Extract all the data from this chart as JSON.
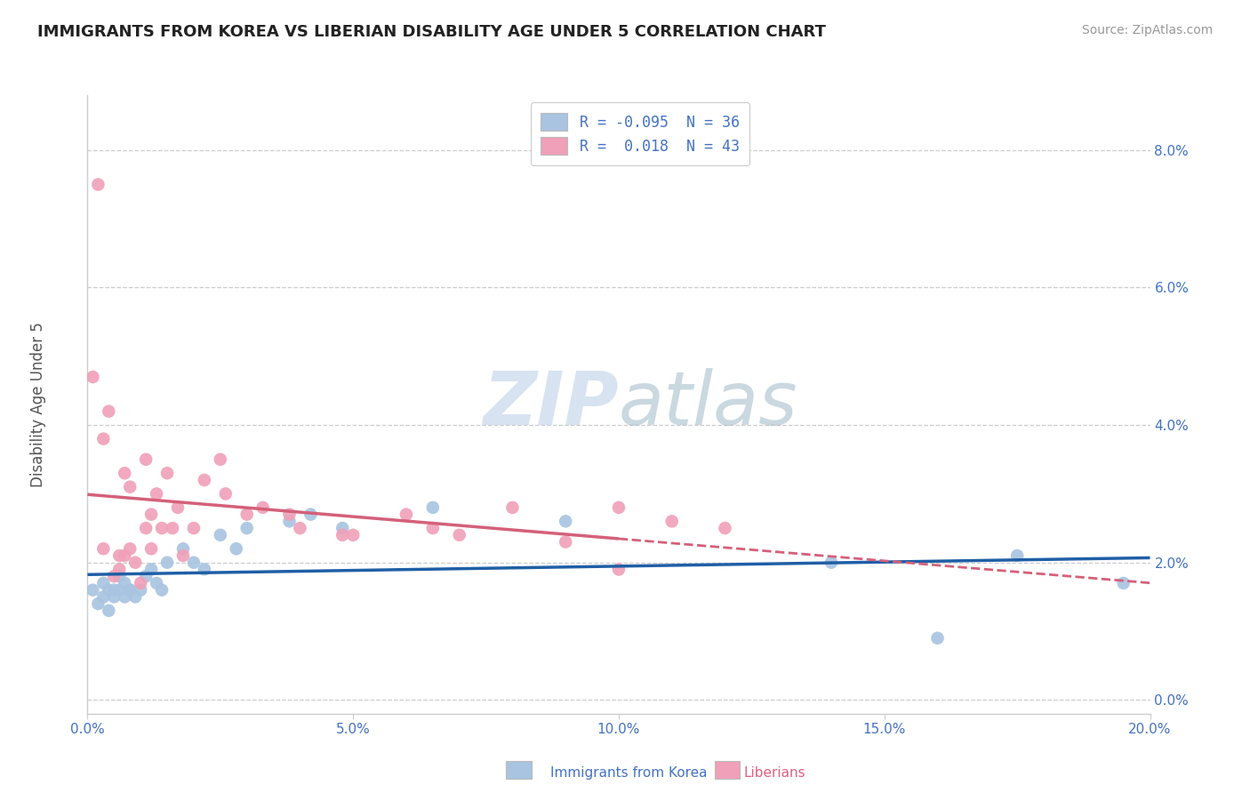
{
  "title": "IMMIGRANTS FROM KOREA VS LIBERIAN DISABILITY AGE UNDER 5 CORRELATION CHART",
  "source": "Source: ZipAtlas.com",
  "ylabel": "Disability Age Under 5",
  "xlim": [
    0.0,
    0.2
  ],
  "ylim": [
    -0.002,
    0.088
  ],
  "xticks": [
    0.0,
    0.05,
    0.1,
    0.15,
    0.2
  ],
  "yticks": [
    0.0,
    0.02,
    0.04,
    0.06,
    0.08
  ],
  "xtick_labels": [
    "0.0%",
    "5.0%",
    "10.0%",
    "15.0%",
    "20.0%"
  ],
  "ytick_labels": [
    "0.0%",
    "2.0%",
    "4.0%",
    "6.0%",
    "8.0%"
  ],
  "legend_r_korea": "R = -0.095",
  "legend_n_korea": "N = 36",
  "legend_r_liberia": "R =  0.018",
  "legend_n_liberia": "N = 43",
  "korea_color": "#a8c4e0",
  "liberia_color": "#f0a0b8",
  "korea_line_color": "#1f5fa6",
  "liberia_line_color": "#d4607a",
  "watermark_color": "#c8d8ec",
  "background_color": "#ffffff",
  "grid_color": "#cccccc",
  "tick_color": "#4472c4",
  "title_color": "#222222",
  "ylabel_color": "#555555",
  "source_color": "#999999",
  "bottom_legend_korea_color": "#4472c4",
  "bottom_legend_liberia_color": "#e06080",
  "korea_x": [
    0.001,
    0.002,
    0.003,
    0.003,
    0.004,
    0.004,
    0.005,
    0.005,
    0.006,
    0.006,
    0.007,
    0.007,
    0.008,
    0.008,
    0.009,
    0.01,
    0.011,
    0.012,
    0.013,
    0.014,
    0.015,
    0.018,
    0.02,
    0.022,
    0.025,
    0.028,
    0.03,
    0.038,
    0.042,
    0.048,
    0.065,
    0.09,
    0.14,
    0.16,
    0.175,
    0.195
  ],
  "korea_y": [
    0.016,
    0.014,
    0.017,
    0.015,
    0.016,
    0.013,
    0.016,
    0.015,
    0.018,
    0.016,
    0.017,
    0.015,
    0.016,
    0.016,
    0.015,
    0.016,
    0.018,
    0.019,
    0.017,
    0.016,
    0.02,
    0.022,
    0.02,
    0.019,
    0.024,
    0.022,
    0.025,
    0.026,
    0.027,
    0.025,
    0.028,
    0.026,
    0.02,
    0.009,
    0.021,
    0.017
  ],
  "liberia_x": [
    0.001,
    0.002,
    0.003,
    0.003,
    0.004,
    0.005,
    0.006,
    0.006,
    0.007,
    0.007,
    0.008,
    0.008,
    0.009,
    0.01,
    0.011,
    0.011,
    0.012,
    0.012,
    0.013,
    0.014,
    0.015,
    0.016,
    0.017,
    0.018,
    0.02,
    0.022,
    0.026,
    0.03,
    0.033,
    0.038,
    0.04,
    0.048,
    0.06,
    0.065,
    0.07,
    0.08,
    0.09,
    0.1,
    0.11,
    0.12,
    0.1,
    0.05,
    0.025
  ],
  "liberia_y": [
    0.047,
    0.075,
    0.038,
    0.022,
    0.042,
    0.018,
    0.021,
    0.019,
    0.021,
    0.033,
    0.022,
    0.031,
    0.02,
    0.017,
    0.025,
    0.035,
    0.027,
    0.022,
    0.03,
    0.025,
    0.033,
    0.025,
    0.028,
    0.021,
    0.025,
    0.032,
    0.03,
    0.027,
    0.028,
    0.027,
    0.025,
    0.024,
    0.027,
    0.025,
    0.024,
    0.028,
    0.023,
    0.019,
    0.026,
    0.025,
    0.028,
    0.024,
    0.035
  ]
}
